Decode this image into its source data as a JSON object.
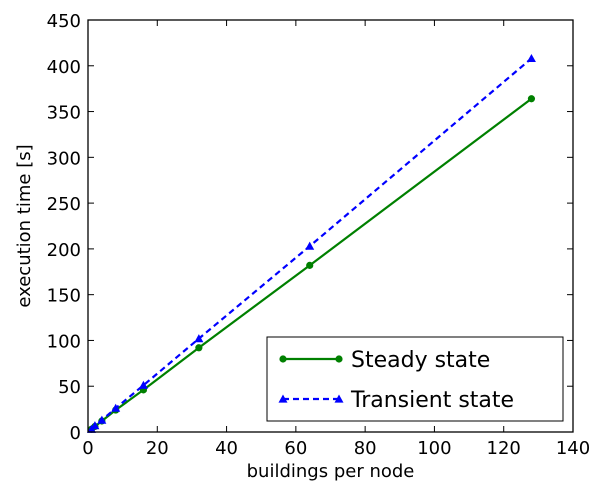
{
  "chart_data": {
    "type": "line",
    "xlabel": "buildings per node",
    "ylabel": "execution time [s]",
    "xlim": [
      0,
      140
    ],
    "ylim": [
      0,
      450
    ],
    "xticks": [
      0,
      20,
      40,
      60,
      80,
      100,
      120,
      140
    ],
    "yticks": [
      0,
      50,
      100,
      150,
      200,
      250,
      300,
      350,
      400,
      450
    ],
    "grid": false,
    "legend_position": "lower-right",
    "series": [
      {
        "name": "Steady state",
        "color": "#008000",
        "line_style": "solid",
        "marker": "circle",
        "x": [
          1,
          2,
          4,
          8,
          16,
          32,
          64,
          128
        ],
        "y": [
          3,
          6,
          12,
          24,
          46,
          92,
          182,
          364
        ]
      },
      {
        "name": "Transient state",
        "color": "#0000ff",
        "line_style": "dashed",
        "marker": "triangle",
        "x": [
          1,
          2,
          4,
          8,
          16,
          32,
          64,
          128
        ],
        "y": [
          3,
          7,
          13,
          26,
          51,
          102,
          203,
          408
        ]
      }
    ]
  }
}
